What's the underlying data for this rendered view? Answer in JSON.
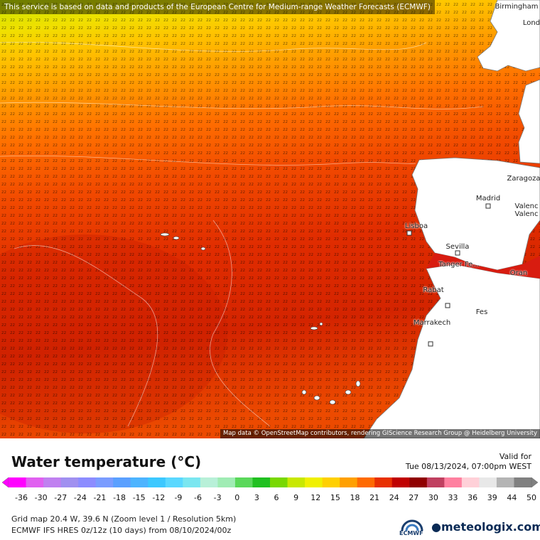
{
  "attribution_top": "This service is based on data and products of the European Centre for Medium-range Weather Forecasts (ECMWF)",
  "attribution_bottom": "Map data © OpenStreetMap contributors, rendering GIScience Research Group @ Heidelberg University",
  "legend": {
    "title": "Water temperature (°C)",
    "valid_label": "Valid for",
    "valid_date": "Tue 08/13/2024, 07:00pm WEST",
    "ticks": [
      "-36",
      "-30",
      "-27",
      "-24",
      "-21",
      "-18",
      "-15",
      "-12",
      "-9",
      "-6",
      "-3",
      "0",
      "3",
      "6",
      "9",
      "12",
      "15",
      "18",
      "21",
      "24",
      "27",
      "30",
      "33",
      "36",
      "39",
      "44",
      "50"
    ],
    "colors": [
      "#ff00ff",
      "#e060f0",
      "#c080f0",
      "#a090f0",
      "#8c8cff",
      "#7a9cff",
      "#5aa0ff",
      "#4cb4ff",
      "#3cc8ff",
      "#5ad8ff",
      "#7ae6f0",
      "#b8f0d8",
      "#a0ecb4",
      "#5ad85a",
      "#20c020",
      "#78d800",
      "#c8e800",
      "#f0f000",
      "#ffd000",
      "#ffa000",
      "#ff6a00",
      "#e83000",
      "#c00000",
      "#900000",
      "#c04060",
      "#ff80a0",
      "#ffd0d8",
      "#e8e8e8",
      "#b4b4b4",
      "#808080"
    ]
  },
  "cities": [
    {
      "name": "Birmingham",
      "key": "birmingham"
    },
    {
      "name": "Lond",
      "key": "london"
    },
    {
      "name": "Zaragoza",
      "key": "zaragoza"
    },
    {
      "name": "Madrid",
      "key": "madrid"
    },
    {
      "name": "Valenc",
      "key": "valencia1"
    },
    {
      "name": "Valenc",
      "key": "valencia2"
    },
    {
      "name": "Lisboa",
      "key": "lisboa"
    },
    {
      "name": "Sevilla",
      "key": "sevilla"
    },
    {
      "name": "Tanger Fe...",
      "key": "tanger"
    },
    {
      "name": "Oran",
      "key": "oran"
    },
    {
      "name": "Rabat",
      "key": "rabat"
    },
    {
      "name": "Fes",
      "key": "fes"
    },
    {
      "name": "Marrakech",
      "key": "marrakech"
    }
  ],
  "info": {
    "line1": "Grid map 20.4 W, 39.6 N (Zoom level 1 / Resolution 5km)",
    "line2": "ECMWF IFS HRES 0z/12z (10 days) from 08/10/2024/00z"
  },
  "logos": {
    "ecmwf": "ECMWF",
    "meteologix": "meteologix.com"
  }
}
